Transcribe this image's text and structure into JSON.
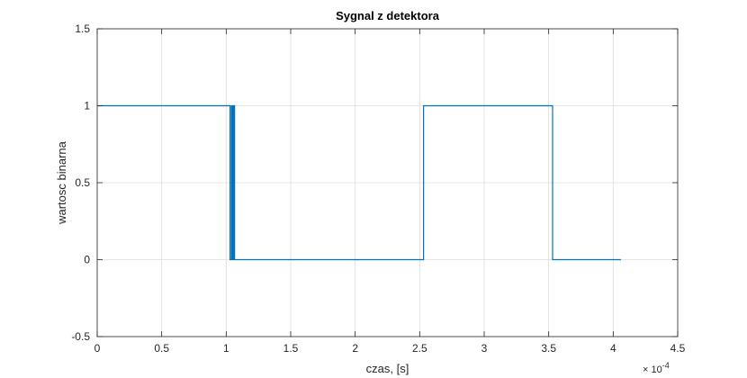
{
  "chart_data": {
    "type": "line",
    "title": "Sygnal z detektora",
    "xlabel": "czas, [s]",
    "ylabel": "wartosc binarna",
    "x_exponent_label": "× 10",
    "x_exponent_power": "-4",
    "x_scale_factor": 0.0001,
    "xlim": [
      0,
      4.5
    ],
    "ylim": [
      -0.5,
      1.5
    ],
    "x_ticks": [
      "0",
      "0.5",
      "1",
      "1.5",
      "2",
      "2.5",
      "3",
      "3.5",
      "4",
      "4.5"
    ],
    "y_ticks": [
      "-0.5",
      "0",
      "0.5",
      "1",
      "1.5"
    ],
    "grid": true,
    "line_color": "#0072BD",
    "series": [
      {
        "x": [
          0,
          1.03,
          1.03,
          1.04,
          1.04,
          1.045,
          1.045,
          1.05,
          1.05,
          1.055,
          1.055,
          1.06,
          1.06,
          1.065,
          1.065,
          1.07,
          1.07,
          2.53,
          2.53,
          3.53,
          3.53,
          4.06
        ],
        "y": [
          1,
          1,
          0,
          0,
          1,
          1,
          0,
          0,
          1,
          1,
          0,
          0,
          1,
          1,
          0,
          0,
          0,
          0,
          1,
          1,
          0,
          0
        ]
      }
    ]
  }
}
